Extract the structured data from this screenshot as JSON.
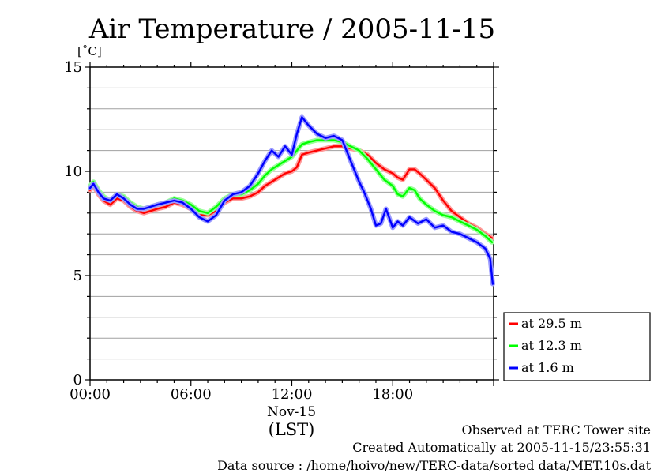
{
  "chart_data": {
    "type": "line",
    "title": "Air Temperature / 2005-11-15",
    "ylabel_unit": "[˚C]",
    "xlabel": "(LST)",
    "x_date_label": "Nov-15",
    "x_tick_labels": [
      "00:00",
      "06:00",
      "12:00",
      "18:00"
    ],
    "y_tick_labels": [
      "0",
      "5",
      "10",
      "15"
    ],
    "ylim": [
      0,
      15
    ],
    "xlim_hours": [
      0,
      24
    ],
    "grid": true,
    "legend_position": "right-bottom",
    "series": [
      {
        "name": "at 29.5 m",
        "color": "#ff0000",
        "x": [
          0,
          0.2,
          0.5,
          0.8,
          1.2,
          1.6,
          2,
          2.4,
          2.8,
          3.2,
          3.6,
          4,
          4.5,
          5,
          5.5,
          6,
          6.5,
          7,
          7.5,
          8,
          8.5,
          9,
          9.5,
          10,
          10.4,
          10.8,
          11.2,
          11.6,
          12,
          12.3,
          12.6,
          13,
          13.5,
          14,
          14.5,
          15,
          15.5,
          16,
          16.5,
          17,
          17.5,
          18,
          18.3,
          18.6,
          19,
          19.3,
          19.6,
          20,
          20.5,
          21,
          21.5,
          22,
          22.5,
          23,
          23.5,
          23.9
        ],
        "y": [
          9.1,
          9.3,
          8.9,
          8.6,
          8.4,
          8.7,
          8.6,
          8.3,
          8.1,
          8.0,
          8.1,
          8.2,
          8.3,
          8.5,
          8.4,
          8.2,
          7.9,
          7.9,
          8.1,
          8.5,
          8.7,
          8.7,
          8.8,
          9.0,
          9.3,
          9.5,
          9.7,
          9.9,
          10.0,
          10.2,
          10.8,
          10.9,
          11.0,
          11.1,
          11.2,
          11.2,
          11.1,
          11.0,
          10.8,
          10.4,
          10.1,
          9.9,
          9.7,
          9.6,
          10.1,
          10.1,
          9.9,
          9.6,
          9.2,
          8.6,
          8.1,
          7.8,
          7.5,
          7.3,
          7.0,
          6.8
        ]
      },
      {
        "name": "at 12.3 m",
        "color": "#00ff00",
        "x": [
          0,
          0.2,
          0.5,
          0.8,
          1.2,
          1.6,
          2,
          2.4,
          2.8,
          3.2,
          3.6,
          4,
          4.5,
          5,
          5.5,
          6,
          6.5,
          7,
          7.5,
          8,
          8.5,
          9,
          9.5,
          10,
          10.4,
          10.8,
          11.2,
          11.6,
          12,
          12.3,
          12.6,
          13,
          13.5,
          14,
          14.5,
          15,
          15.5,
          16,
          16.5,
          17,
          17.5,
          18,
          18.3,
          18.6,
          19,
          19.3,
          19.6,
          20,
          20.5,
          21,
          21.5,
          22,
          22.5,
          23,
          23.5,
          23.9
        ],
        "y": [
          9.3,
          9.5,
          9.1,
          8.8,
          8.6,
          8.9,
          8.8,
          8.5,
          8.3,
          8.2,
          8.3,
          8.4,
          8.5,
          8.7,
          8.6,
          8.4,
          8.1,
          8.0,
          8.3,
          8.7,
          8.9,
          8.9,
          9.1,
          9.4,
          9.8,
          10.1,
          10.3,
          10.5,
          10.7,
          11.0,
          11.3,
          11.4,
          11.5,
          11.5,
          11.5,
          11.4,
          11.2,
          11.0,
          10.6,
          10.1,
          9.6,
          9.3,
          8.9,
          8.8,
          9.2,
          9.1,
          8.7,
          8.4,
          8.1,
          7.9,
          7.8,
          7.6,
          7.4,
          7.2,
          6.9,
          6.6
        ]
      },
      {
        "name": "at 1.6 m",
        "color": "#0000ff",
        "x": [
          0,
          0.2,
          0.5,
          0.8,
          1.2,
          1.6,
          2,
          2.4,
          2.8,
          3.2,
          3.6,
          4,
          4.5,
          5,
          5.5,
          6,
          6.5,
          7,
          7.5,
          8,
          8.5,
          9,
          9.5,
          10,
          10.4,
          10.8,
          11.2,
          11.6,
          12,
          12.3,
          12.6,
          13,
          13.5,
          14,
          14.5,
          15,
          15.5,
          16,
          16.3,
          16.7,
          17,
          17.3,
          17.6,
          18,
          18.3,
          18.6,
          19,
          19.5,
          20,
          20.5,
          21,
          21.5,
          22,
          22.5,
          23,
          23.5,
          23.8,
          23.95
        ],
        "y": [
          9.2,
          9.4,
          9.0,
          8.7,
          8.6,
          8.9,
          8.7,
          8.4,
          8.2,
          8.2,
          8.3,
          8.4,
          8.5,
          8.6,
          8.5,
          8.2,
          7.8,
          7.6,
          7.9,
          8.6,
          8.9,
          9.0,
          9.3,
          9.9,
          10.5,
          11.0,
          10.7,
          11.2,
          10.8,
          11.8,
          12.6,
          12.2,
          11.8,
          11.6,
          11.7,
          11.5,
          10.5,
          9.5,
          9.0,
          8.2,
          7.4,
          7.5,
          8.2,
          7.3,
          7.6,
          7.4,
          7.8,
          7.5,
          7.7,
          7.3,
          7.4,
          7.1,
          7.0,
          6.8,
          6.6,
          6.3,
          5.8,
          4.6
        ]
      }
    ]
  },
  "footer": {
    "line1": "Observed at TERC Tower site",
    "line2": "Created Automatically at 2005-11-15/23:55:31",
    "line3": "Data source : /home/hoivo/new/TERC-data/sorted  data/MET.10s.dat"
  }
}
